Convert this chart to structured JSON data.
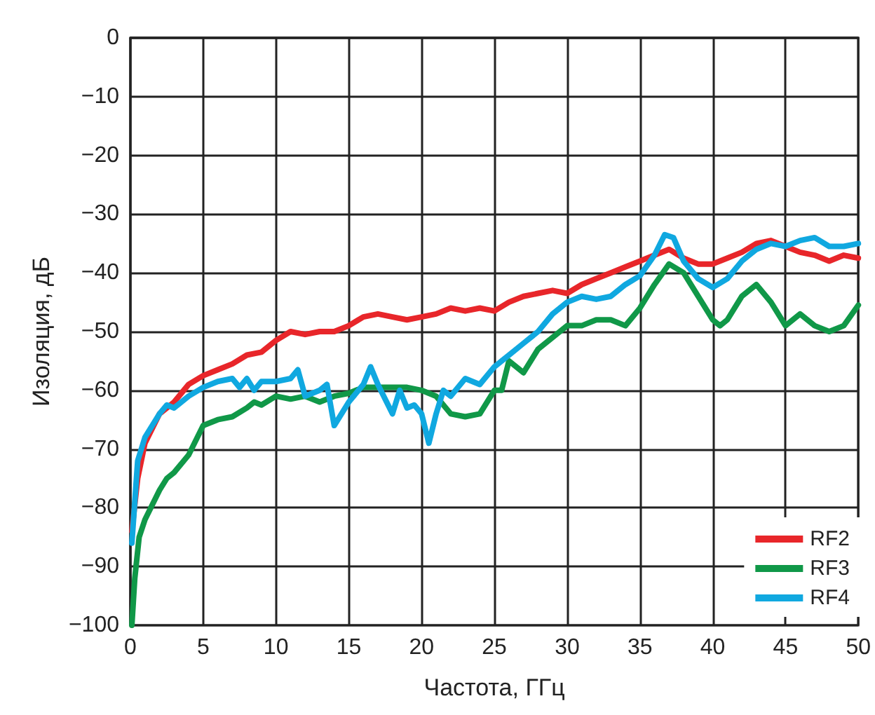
{
  "chart_data": {
    "type": "line",
    "xlabel": "Частота, ГГц",
    "ylabel": "Изоляция, дБ",
    "xlim": [
      0,
      50
    ],
    "xticks": [
      0,
      5,
      10,
      15,
      20,
      25,
      30,
      35,
      40,
      45,
      50
    ],
    "ylim": [
      -100,
      0
    ],
    "yticks": [
      0,
      {
        "value": -10,
        "label": "−10"
      },
      {
        "value": -20,
        "label": "−20"
      },
      {
        "value": -30,
        "label": "−30"
      },
      {
        "value": -40,
        "label": "−40"
      },
      {
        "value": -50,
        "label": "−50"
      },
      {
        "value": -60,
        "label": "−60"
      },
      {
        "value": -70,
        "label": "−70"
      },
      {
        "value": -80,
        "label": "−80"
      },
      {
        "value": -90,
        "label": "−90"
      },
      {
        "value": -100,
        "label": "−100"
      }
    ],
    "grid": true,
    "legend": "bottom right",
    "marker": "none",
    "line_style": "solid",
    "series": [
      {
        "name": "RF2",
        "color": "#e8262a",
        "x": [
          0.1,
          0.5,
          1,
          2,
          3,
          4,
          5,
          6,
          7,
          8,
          9,
          10,
          11,
          12,
          13,
          14,
          15,
          16,
          17,
          18,
          19,
          20,
          21,
          22,
          23,
          24,
          25,
          26,
          27,
          28,
          29,
          30,
          31,
          32,
          33,
          34,
          35,
          36,
          37,
          38,
          39,
          40,
          41,
          42,
          43,
          44,
          45,
          46,
          47,
          48,
          49,
          50
        ],
        "values": [
          -84,
          -75,
          -69,
          -64,
          -62,
          -59,
          -57.5,
          -56.5,
          -55.5,
          -54,
          -53.5,
          -51.5,
          -50,
          -50.5,
          -50,
          -50,
          -49,
          -47.5,
          -47,
          -47.5,
          -48,
          -47.5,
          -47,
          -46,
          -46.5,
          -46,
          -46.5,
          -45,
          -44,
          -43.5,
          -43,
          -43.5,
          -42,
          -41,
          -40,
          -39,
          -38,
          -37,
          -36,
          -37.5,
          -38.5,
          -38.5,
          -37.5,
          -36.5,
          -35,
          -34.5,
          -35.5,
          -36.5,
          -37,
          -38,
          -37,
          -37.5
        ]
      },
      {
        "name": "RF3",
        "color": "#109848",
        "x": [
          0.1,
          0.3,
          0.6,
          1,
          2,
          2.5,
          3,
          4,
          5,
          6,
          7,
          8,
          8.5,
          9,
          10,
          11,
          12,
          13,
          14,
          15,
          16,
          17,
          18,
          19,
          20,
          21,
          22,
          23,
          24,
          25,
          25.5,
          26,
          27,
          28,
          29,
          30,
          31,
          32,
          33,
          34,
          35,
          36,
          37,
          38,
          39,
          40,
          40.5,
          41,
          42,
          43,
          44,
          45,
          46,
          47,
          48,
          49,
          50
        ],
        "values": [
          -100,
          -92,
          -85,
          -82,
          -77,
          -75,
          -74,
          -71,
          -66,
          -65,
          -64.5,
          -63,
          -62,
          -62.5,
          -61,
          -61.5,
          -61,
          -62,
          -61,
          -60.5,
          -59.5,
          -59.5,
          -59.5,
          -59.5,
          -60,
          -61,
          -64,
          -64.5,
          -64,
          -60,
          -60,
          -55,
          -57,
          -53,
          -51,
          -49,
          -49,
          -48,
          -48,
          -49,
          -46,
          -42,
          -38.5,
          -40,
          -44,
          -48,
          -49,
          -48,
          -44,
          -42,
          -45,
          -49,
          -47,
          -49,
          -50,
          -49,
          -45.5
        ]
      },
      {
        "name": "RF4",
        "color": "#10a8e0",
        "x": [
          0.1,
          0.5,
          1,
          2,
          2.5,
          3,
          4,
          5,
          6,
          7,
          7.5,
          8,
          8.5,
          9,
          10,
          11,
          11.5,
          12,
          13,
          13.5,
          14,
          15,
          16,
          16.5,
          17,
          18,
          18.5,
          19,
          19.5,
          20,
          20.5,
          21,
          21.5,
          22,
          23,
          24,
          25,
          26,
          27,
          28,
          29,
          30,
          31,
          32,
          33,
          34,
          35,
          36,
          36.7,
          37.3,
          38,
          39,
          40,
          41,
          42,
          43,
          44,
          45,
          46,
          47,
          48,
          49,
          50
        ],
        "values": [
          -86,
          -72,
          -68,
          -64,
          -62.5,
          -63,
          -61,
          -59.5,
          -58.5,
          -58,
          -59.5,
          -58,
          -60,
          -58.5,
          -58.5,
          -58,
          -56.5,
          -61,
          -60,
          -59,
          -66,
          -62,
          -59,
          -56,
          -59,
          -64,
          -60,
          -63,
          -62.5,
          -64,
          -69,
          -64,
          -60,
          -61,
          -58,
          -59,
          -56,
          -54,
          -52,
          -50,
          -47,
          -45,
          -44,
          -44.5,
          -44,
          -42,
          -40.5,
          -37,
          -33.5,
          -34,
          -38,
          -41,
          -42.5,
          -41,
          -38,
          -36,
          -35,
          -35.5,
          -34.5,
          -34,
          -35.5,
          -35.5,
          -35
        ]
      }
    ]
  }
}
